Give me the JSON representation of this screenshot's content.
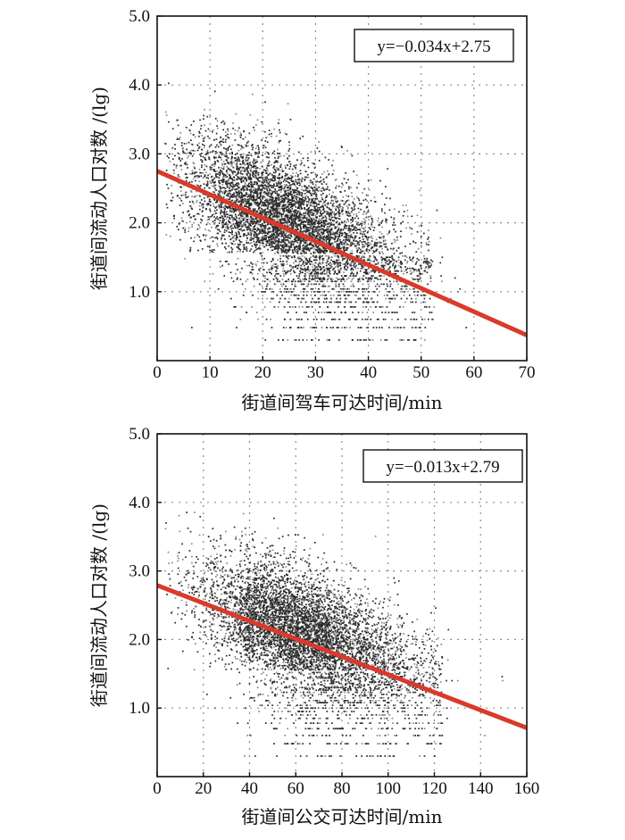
{
  "chart_data": [
    {
      "type": "scatter",
      "xlabel": "街道间驾车可达时间/min",
      "ylabel": "街道间流动人口对数 /(lg)",
      "xlim": [
        0,
        70
      ],
      "ylim": [
        0,
        5
      ],
      "x_ticks": [
        "0",
        "10",
        "20",
        "30",
        "40",
        "50",
        "60",
        "70"
      ],
      "y_ticks": [
        "1.0",
        "2.0",
        "3.0",
        "4.0",
        "5.0"
      ],
      "grid": true,
      "annotation": "y=−0.034x+2.75",
      "regression": {
        "slope": -0.034,
        "intercept": 2.75,
        "color": "#d93a2b"
      },
      "point_cloud": {
        "count": 6500,
        "x_center": 24,
        "x_spread": 10,
        "y_center": 2.2,
        "y_spread": 0.45,
        "color": "#2a2a2a"
      }
    },
    {
      "type": "scatter",
      "xlabel": "街道间公交可达时间/min",
      "ylabel": "街道间流动人口对数 /(lg)",
      "xlim": [
        0,
        160
      ],
      "ylim": [
        0,
        5
      ],
      "x_ticks": [
        "0",
        "20",
        "40",
        "60",
        "80",
        "100",
        "120",
        "140",
        "160"
      ],
      "y_ticks": [
        "1.0",
        "2.0",
        "3.0",
        "4.0",
        "5.0"
      ],
      "grid": true,
      "annotation": "y=−0.013x+2.79",
      "regression": {
        "slope": -0.013,
        "intercept": 2.79,
        "color": "#d93a2b"
      },
      "point_cloud": {
        "count": 6500,
        "x_center": 62,
        "x_spread": 22,
        "y_center": 2.0,
        "y_spread": 0.45,
        "color": "#2a2a2a"
      }
    }
  ]
}
